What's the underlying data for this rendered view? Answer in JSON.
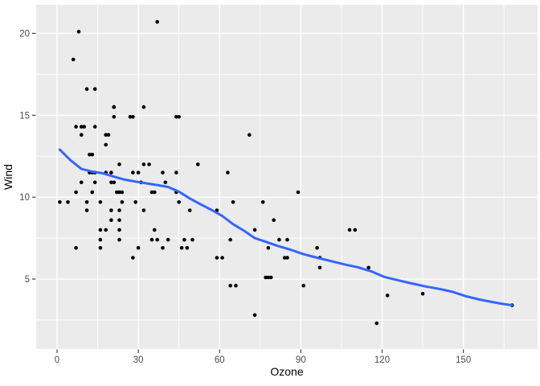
{
  "chart_data": {
    "type": "scatter",
    "title": "",
    "xlabel": "Ozone",
    "ylabel": "Wind",
    "legend": "none",
    "grid": true,
    "x_domain": [
      -7.71,
      177.4
    ],
    "y_domain": [
      0.73,
      21.74
    ],
    "x_ticks": {
      "major": [
        0,
        30,
        60,
        90,
        120,
        150
      ],
      "minor": [
        15,
        45,
        75,
        105,
        135,
        165
      ]
    },
    "y_ticks": {
      "major": [
        5,
        10,
        15,
        20
      ],
      "minor": [
        2.5,
        7.5,
        12.5,
        17.5
      ]
    },
    "colors": {
      "panel_background": "#EBEBEB",
      "grid_major": "#FFFFFF",
      "grid_minor": "#FFFFFF",
      "point": "#000000",
      "smooth_line": "#3366FF",
      "axis_text": "#4D4D4D",
      "axis_title": "#000000",
      "tick_mark": "#333333"
    },
    "series": [
      {
        "name": "observations",
        "geom": "point",
        "data": [
          [
            41,
            7.4
          ],
          [
            36,
            8.0
          ],
          [
            12,
            12.6
          ],
          [
            18,
            11.5
          ],
          [
            28,
            14.9
          ],
          [
            23,
            8.6
          ],
          [
            19,
            13.8
          ],
          [
            8,
            20.1
          ],
          [
            7,
            6.9
          ],
          [
            16,
            9.7
          ],
          [
            11,
            9.2
          ],
          [
            14,
            10.9
          ],
          [
            18,
            13.2
          ],
          [
            14,
            11.5
          ],
          [
            34,
            12.0
          ],
          [
            6,
            18.4
          ],
          [
            30,
            11.5
          ],
          [
            11,
            9.7
          ],
          [
            1,
            9.7
          ],
          [
            11,
            16.6
          ],
          [
            4,
            9.7
          ],
          [
            32,
            12.0
          ],
          [
            23,
            12.0
          ],
          [
            45,
            14.9
          ],
          [
            115,
            5.7
          ],
          [
            37,
            7.4
          ],
          [
            29,
            9.7
          ],
          [
            71,
            13.8
          ],
          [
            39,
            11.5
          ],
          [
            23,
            8.0
          ],
          [
            21,
            14.9
          ],
          [
            37,
            20.7
          ],
          [
            20,
            9.2
          ],
          [
            12,
            11.5
          ],
          [
            13,
            10.3
          ],
          [
            135,
            4.1
          ],
          [
            49,
            9.2
          ],
          [
            32,
            9.2
          ],
          [
            64,
            4.6
          ],
          [
            40,
            10.9
          ],
          [
            77,
            5.1
          ],
          [
            97,
            6.3
          ],
          [
            97,
            5.7
          ],
          [
            85,
            7.4
          ],
          [
            10,
            14.3
          ],
          [
            27,
            14.9
          ],
          [
            7,
            14.3
          ],
          [
            48,
            6.9
          ],
          [
            35,
            10.3
          ],
          [
            61,
            6.3
          ],
          [
            79,
            5.1
          ],
          [
            63,
            11.5
          ],
          [
            16,
            6.9
          ],
          [
            80,
            8.6
          ],
          [
            108,
            8.0
          ],
          [
            20,
            8.6
          ],
          [
            52,
            12.0
          ],
          [
            82,
            7.4
          ],
          [
            50,
            7.4
          ],
          [
            64,
            7.4
          ],
          [
            59,
            9.2
          ],
          [
            39,
            6.9
          ],
          [
            9,
            13.8
          ],
          [
            16,
            7.4
          ],
          [
            78,
            6.9
          ],
          [
            35,
            7.4
          ],
          [
            66,
            4.6
          ],
          [
            122,
            4.0
          ],
          [
            89,
            10.3
          ],
          [
            110,
            8.0
          ],
          [
            44,
            11.5
          ],
          [
            28,
            11.5
          ],
          [
            65,
            9.7
          ],
          [
            22,
            10.3
          ],
          [
            59,
            6.3
          ],
          [
            23,
            7.4
          ],
          [
            31,
            10.9
          ],
          [
            44,
            10.3
          ],
          [
            21,
            15.5
          ],
          [
            9,
            14.3
          ],
          [
            45,
            9.7
          ],
          [
            168,
            3.4
          ],
          [
            73,
            8.0
          ],
          [
            76,
            9.7
          ],
          [
            118,
            2.3
          ],
          [
            84,
            6.3
          ],
          [
            85,
            6.3
          ],
          [
            96,
            6.9
          ],
          [
            78,
            5.1
          ],
          [
            73,
            2.8
          ],
          [
            91,
            4.6
          ],
          [
            47,
            7.4
          ],
          [
            32,
            15.5
          ],
          [
            20,
            10.9
          ],
          [
            23,
            10.3
          ],
          [
            21,
            10.9
          ],
          [
            24,
            9.7
          ],
          [
            44,
            14.9
          ],
          [
            21,
            15.5
          ],
          [
            28,
            6.3
          ],
          [
            9,
            10.9
          ],
          [
            13,
            11.5
          ],
          [
            46,
            6.9
          ],
          [
            18,
            13.8
          ],
          [
            13,
            10.3
          ],
          [
            24,
            10.3
          ],
          [
            16,
            8.0
          ],
          [
            13,
            12.6
          ],
          [
            23,
            9.2
          ],
          [
            36,
            10.3
          ],
          [
            7,
            10.3
          ],
          [
            14,
            16.6
          ],
          [
            30,
            6.9
          ],
          [
            14,
            14.3
          ],
          [
            18,
            8.0
          ],
          [
            20,
            11.5
          ]
        ]
      },
      {
        "name": "loess-smooth",
        "geom": "line",
        "data": [
          [
            1,
            12.9
          ],
          [
            5,
            12.25
          ],
          [
            9,
            11.72
          ],
          [
            13,
            11.56
          ],
          [
            17,
            11.45
          ],
          [
            21,
            11.25
          ],
          [
            25,
            11.07
          ],
          [
            29,
            10.95
          ],
          [
            33,
            10.84
          ],
          [
            37,
            10.74
          ],
          [
            41,
            10.62
          ],
          [
            45,
            10.33
          ],
          [
            49,
            9.92
          ],
          [
            53,
            9.56
          ],
          [
            57,
            9.22
          ],
          [
            61,
            8.85
          ],
          [
            65,
            8.35
          ],
          [
            69,
            7.95
          ],
          [
            73,
            7.5
          ],
          [
            77,
            7.28
          ],
          [
            81,
            7.05
          ],
          [
            86,
            6.8
          ],
          [
            91,
            6.52
          ],
          [
            96,
            6.3
          ],
          [
            101,
            6.1
          ],
          [
            106,
            5.9
          ],
          [
            111,
            5.72
          ],
          [
            116,
            5.47
          ],
          [
            121,
            5.12
          ],
          [
            126,
            4.92
          ],
          [
            131,
            4.73
          ],
          [
            136,
            4.55
          ],
          [
            141,
            4.4
          ],
          [
            146,
            4.22
          ],
          [
            151,
            3.95
          ],
          [
            156,
            3.75
          ],
          [
            160,
            3.62
          ],
          [
            164,
            3.5
          ],
          [
            168,
            3.4
          ]
        ]
      }
    ]
  }
}
